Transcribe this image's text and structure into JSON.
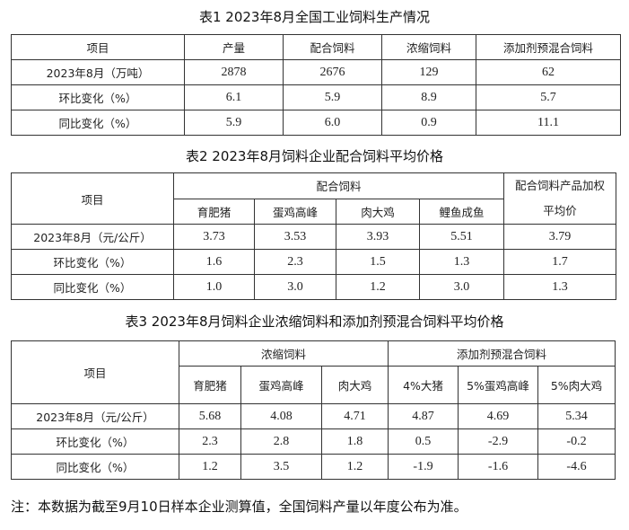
{
  "table1": {
    "title": "表1  2023年8月全国工业饲料生产情况",
    "headers": [
      "项目",
      "产量",
      "配合饲料",
      "浓缩饲料",
      "添加剂预混合饲料"
    ],
    "rows": [
      [
        "2023年8月（万吨）",
        "2878",
        "2676",
        "129",
        "62"
      ],
      [
        "环比变化（%）",
        "6.1",
        "5.9",
        "8.9",
        "5.7"
      ],
      [
        "同比变化（%）",
        "5.9",
        "6.0",
        "0.9",
        "11.1"
      ]
    ]
  },
  "table2": {
    "title": "表2  2023年8月饲料企业配合饲料平均价格",
    "item_header": "项目",
    "group_header": "配合饲料",
    "weighted_header_line1": "配合饲料产品加权",
    "weighted_header_line2": "平均价",
    "sub_headers": [
      "育肥猪",
      "蛋鸡高峰",
      "肉大鸡",
      "鲤鱼成鱼"
    ],
    "rows": [
      [
        "2023年8月（元/公斤）",
        "3.73",
        "3.53",
        "3.93",
        "5.51",
        "3.79"
      ],
      [
        "环比变化（%）",
        "1.6",
        "2.3",
        "1.5",
        "1.3",
        "1.7"
      ],
      [
        "同比变化（%）",
        "1.0",
        "3.0",
        "1.2",
        "3.0",
        "1.3"
      ]
    ]
  },
  "table3": {
    "title": "表3  2023年8月饲料企业浓缩饲料和添加剂预混合饲料平均价格",
    "item_header": "项目",
    "group_headers": [
      "浓缩饲料",
      "添加剂预混合饲料"
    ],
    "sub_headers": [
      "育肥猪",
      "蛋鸡高峰",
      "肉大鸡",
      "4%大猪",
      "5%蛋鸡高峰",
      "5%肉大鸡"
    ],
    "rows": [
      [
        "2023年8月（元/公斤）",
        "5.68",
        "4.08",
        "4.71",
        "4.87",
        "4.69",
        "5.34"
      ],
      [
        "环比变化（%）",
        "2.3",
        "2.8",
        "1.8",
        "0.5",
        "-2.9",
        "-0.2"
      ],
      [
        "同比变化（%）",
        "1.2",
        "3.5",
        "1.2",
        "-1.9",
        "-1.6",
        "-4.6"
      ]
    ]
  },
  "note": "注：本数据为截至9月10日样本企业测算值，全国饲料产量以年度公布为准。"
}
